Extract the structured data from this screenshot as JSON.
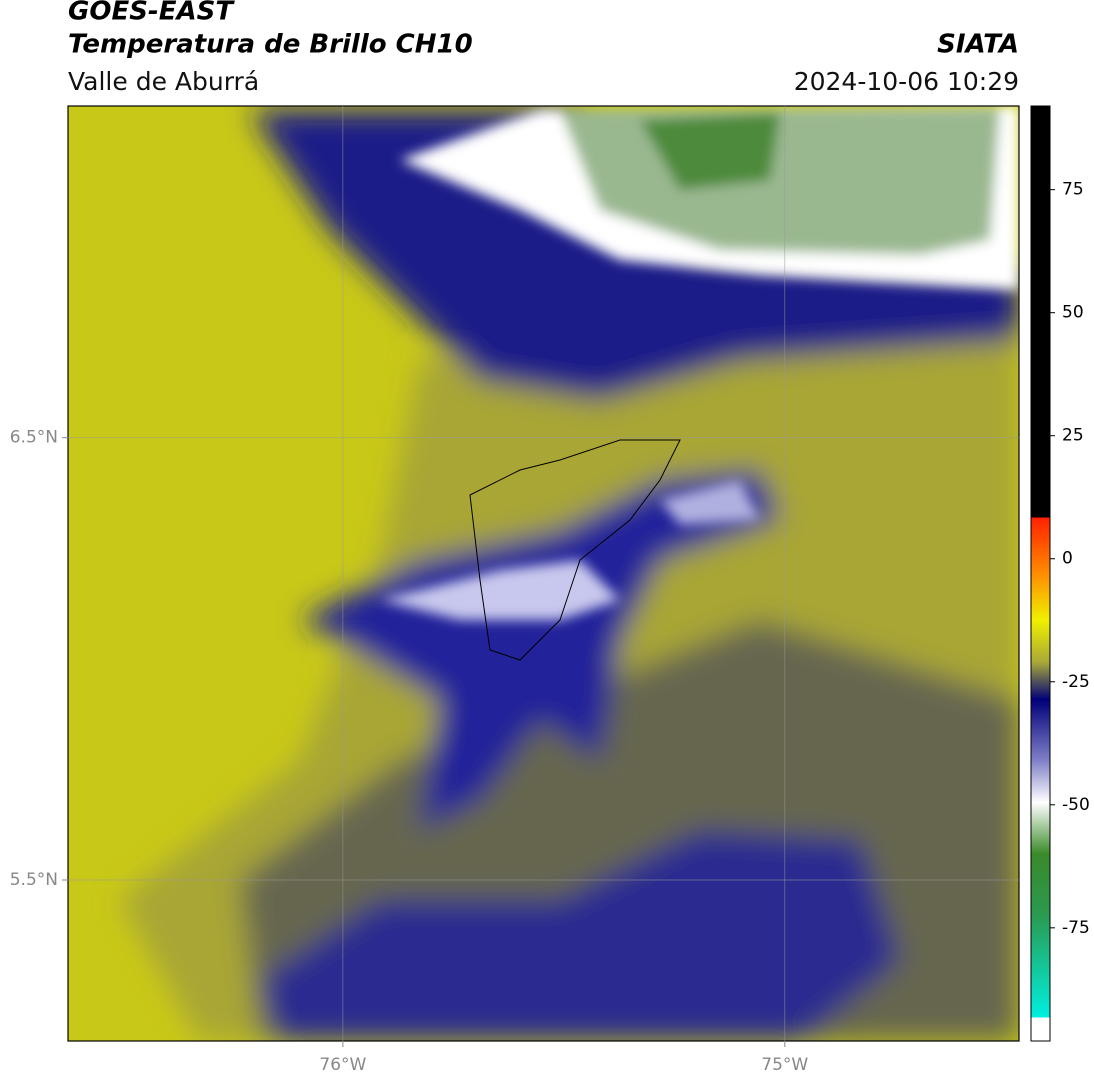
{
  "header": {
    "title": "GOES-EAST",
    "subtitle": "Temperatura de Brillo CH10",
    "source": "SIATA",
    "region": "Valle de Aburrá",
    "datetime": "2024-10-06 10:29"
  },
  "map": {
    "xlim": [
      -76.622,
      -74.47
    ],
    "ylim": [
      5.136,
      7.25
    ],
    "xticks": [
      {
        "value": -76,
        "label": "76°W"
      },
      {
        "value": -75,
        "label": "75°W"
      }
    ],
    "yticks": [
      {
        "value": 6.5,
        "label": "6.5°N"
      },
      {
        "value": 5.5,
        "label": "5.5°N"
      }
    ],
    "grid": true
  },
  "colorbar": {
    "lim": [
      -98,
      92
    ],
    "ticks": [
      75,
      50,
      25,
      0,
      -25,
      -50,
      -75
    ]
  }
}
